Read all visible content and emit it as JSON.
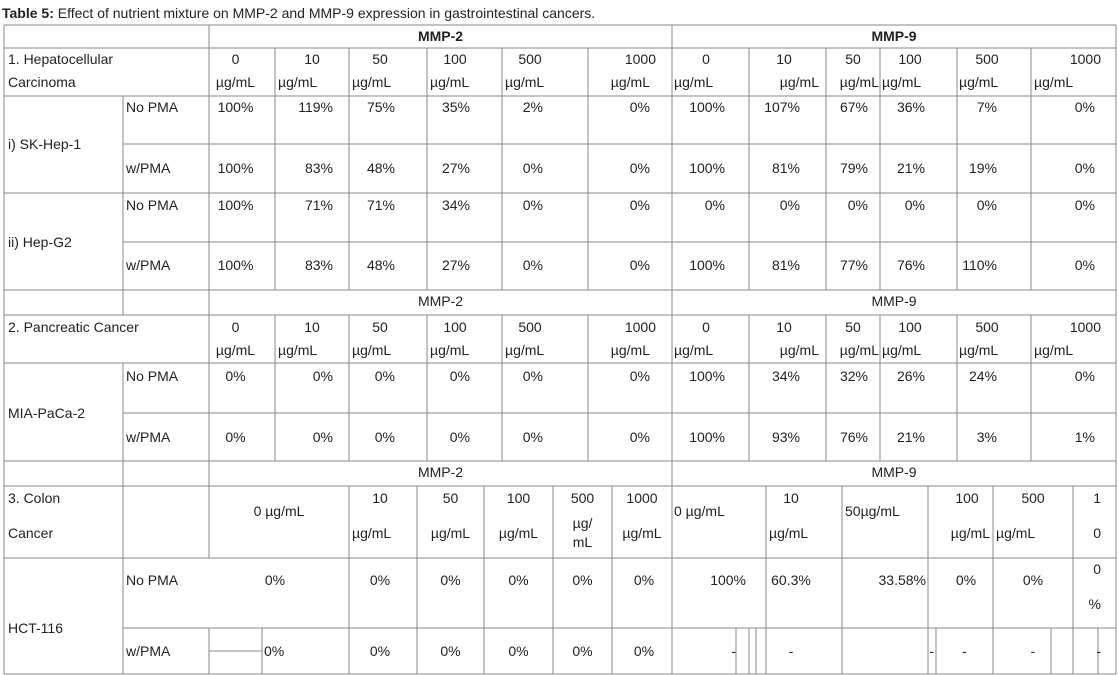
{
  "caption": {
    "label": "Table 5:",
    "text": " Effect of nutrient mixture on MMP-2 and MMP-9 expression in gastrointestinal cancers."
  },
  "headers": {
    "mmp2": "MMP-2",
    "mmp9": "MMP-9"
  },
  "sections": {
    "hepatocellular": {
      "title_line1": "1. Hepatocellular",
      "title_line2": "Carcinoma",
      "doses_mmp2": [
        [
          "0",
          "µg/mL"
        ],
        [
          "10",
          "µg/mL"
        ],
        [
          "50",
          "µg/mL"
        ],
        [
          "100",
          "µg/mL"
        ],
        [
          "500",
          "µg/mL"
        ],
        [
          "1000",
          "µg/mL"
        ]
      ],
      "doses_mmp9": [
        [
          "0",
          "µg/mL"
        ],
        [
          "10",
          "µg/mL"
        ],
        [
          "50",
          "µg/mL"
        ],
        [
          "100",
          "µg/mL"
        ],
        [
          "500",
          "µg/mL"
        ],
        [
          "1000",
          "µg/mL"
        ]
      ],
      "cell_lines": [
        {
          "name": "i) SK-Hep-1",
          "rows": [
            {
              "condition": "No PMA",
              "mmp2": [
                "100%",
                "119%",
                "75%",
                "35%",
                "2%",
                "0%"
              ],
              "mmp9": [
                "100%",
                "107%",
                "67%",
                "36%",
                "7%",
                "0%"
              ]
            },
            {
              "condition": "w/PMA",
              "mmp2": [
                "100%",
                "83%",
                "48%",
                "27%",
                "0%",
                "0%"
              ],
              "mmp9": [
                "100%",
                "81%",
                "79%",
                "21%",
                "19%",
                "0%"
              ]
            }
          ]
        },
        {
          "name": "ii) Hep-G2",
          "rows": [
            {
              "condition": "No PMA",
              "mmp2": [
                "100%",
                "71%",
                "71%",
                "34%",
                "0%",
                "0%"
              ],
              "mmp9": [
                "0%",
                "0%",
                "0%",
                "0%",
                "0%",
                "0%"
              ]
            },
            {
              "condition": "w/PMA",
              "mmp2": [
                "100%",
                "83%",
                "48%",
                "27%",
                "0%",
                "0%"
              ],
              "mmp9": [
                "100%",
                "81%",
                "77%",
                "76%",
                "110%",
                "0%"
              ]
            }
          ]
        }
      ]
    },
    "pancreatic": {
      "title": "2. Pancreatic Cancer",
      "cell_line": "MIA-PaCa-2",
      "rows": [
        {
          "condition": "No PMA",
          "mmp2": [
            "0%",
            "0%",
            "0%",
            "0%",
            "0%",
            "0%"
          ],
          "mmp9": [
            "100%",
            "34%",
            "32%",
            "26%",
            "24%",
            "0%"
          ]
        },
        {
          "condition": "w/PMA",
          "mmp2": [
            "0%",
            "0%",
            "0%",
            "0%",
            "0%",
            "0%"
          ],
          "mmp9": [
            "100%",
            "93%",
            "76%",
            "21%",
            "3%",
            "1%"
          ]
        }
      ]
    },
    "colon": {
      "title_line1": "3. Colon",
      "title_line2": "Cancer",
      "cell_line": "HCT-116",
      "doses_mmp2": [
        "0 µg/mL",
        "10",
        "µg/mL",
        "50",
        "µg/mL",
        "100",
        "µg/mL",
        "500",
        "µg/",
        "mL",
        "1000",
        "µg/mL"
      ],
      "doses_mmp9": [
        "0 µg/mL",
        "10",
        "µg/mL",
        "50µg/mL",
        "100",
        "µg/mL",
        "500",
        "µg/mL",
        "1",
        "0"
      ],
      "rows": [
        {
          "condition": "No PMA",
          "mmp2": [
            "0%",
            "0%",
            "0%",
            "0%",
            "0%",
            "0%"
          ],
          "mmp9": [
            "100%",
            "60.3%",
            "33.58%",
            "0%",
            "0%",
            "0",
            "%"
          ]
        },
        {
          "condition": "w/PMA",
          "mmp2": [
            "0%",
            "0%",
            "0%",
            "0%",
            "0%",
            "0%"
          ],
          "mmp9": [
            "-",
            "-",
            "-",
            "-",
            "-",
            "-"
          ]
        }
      ]
    }
  }
}
